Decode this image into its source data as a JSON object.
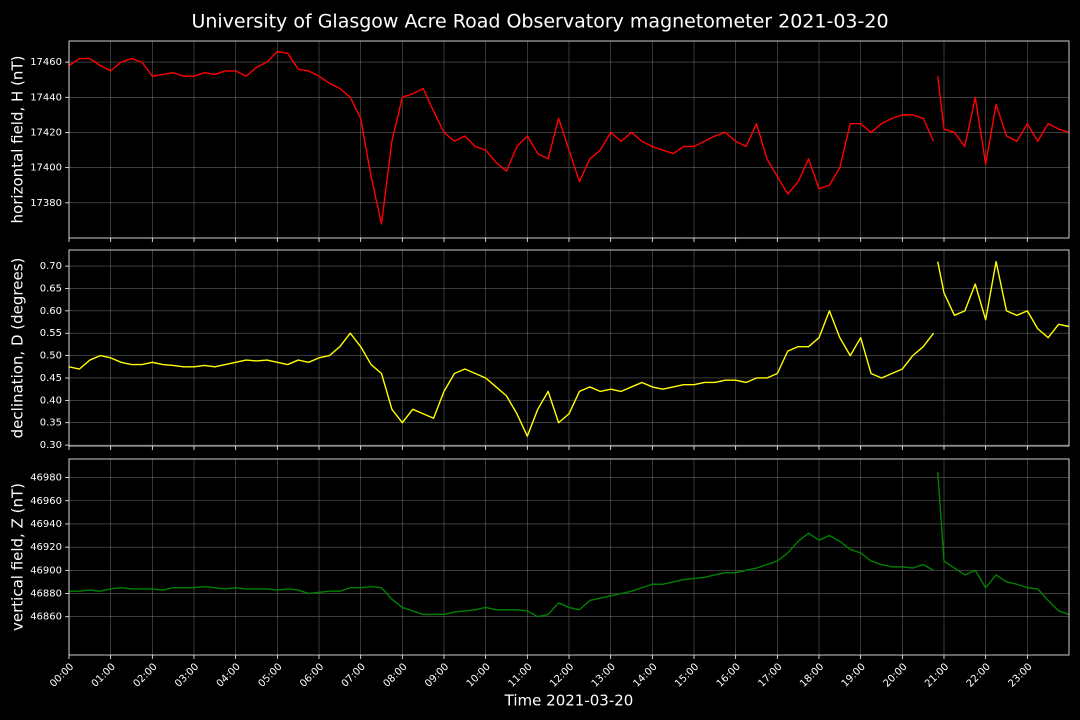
{
  "title": "University of Glasgow Acre Road Observatory magnetometer 2021-03-20",
  "xlabel": "Time 2021-03-20",
  "xlim": [
    0,
    24
  ],
  "xticks": [
    {
      "value": 0,
      "label": "00:00"
    },
    {
      "value": 1,
      "label": "01:00"
    },
    {
      "value": 2,
      "label": "02:00"
    },
    {
      "value": 3,
      "label": "03:00"
    },
    {
      "value": 4,
      "label": "04:00"
    },
    {
      "value": 5,
      "label": "05:00"
    },
    {
      "value": 6,
      "label": "06:00"
    },
    {
      "value": 7,
      "label": "07:00"
    },
    {
      "value": 8,
      "label": "08:00"
    },
    {
      "value": 9,
      "label": "09:00"
    },
    {
      "value": 10,
      "label": "10:00"
    },
    {
      "value": 11,
      "label": "11:00"
    },
    {
      "value": 12,
      "label": "12:00"
    },
    {
      "value": 13,
      "label": "13:00"
    },
    {
      "value": 14,
      "label": "14:00"
    },
    {
      "value": 15,
      "label": "15:00"
    },
    {
      "value": 16,
      "label": "16:00"
    },
    {
      "value": 17,
      "label": "17:00"
    },
    {
      "value": 18,
      "label": "18:00"
    },
    {
      "value": 19,
      "label": "19:00"
    },
    {
      "value": 20,
      "label": "20:00"
    },
    {
      "value": 21,
      "label": "21:00"
    },
    {
      "value": 22,
      "label": "22:00"
    },
    {
      "value": 23,
      "label": "23:00"
    }
  ],
  "chart_data": [
    {
      "type": "line",
      "ylabel": "horizontal field, H (nT)",
      "color": "#ff0000",
      "grid": true,
      "ylim": [
        17360,
        17472
      ],
      "yticks": [
        17380,
        17400,
        17420,
        17440,
        17460
      ],
      "x": [
        0,
        0.25,
        0.5,
        0.75,
        1,
        1.25,
        1.5,
        1.75,
        2,
        2.25,
        2.5,
        2.75,
        3,
        3.25,
        3.5,
        3.75,
        4,
        4.25,
        4.5,
        4.75,
        5,
        5.25,
        5.5,
        5.75,
        6,
        6.25,
        6.5,
        6.75,
        7,
        7.25,
        7.5,
        7.75,
        8,
        8.25,
        8.5,
        8.75,
        9,
        9.25,
        9.5,
        9.75,
        10,
        10.25,
        10.5,
        10.75,
        11,
        11.25,
        11.5,
        11.75,
        12,
        12.25,
        12.5,
        12.75,
        13,
        13.25,
        13.5,
        13.75,
        14,
        14.25,
        14.5,
        14.75,
        15,
        15.25,
        15.5,
        15.75,
        16,
        16.25,
        16.5,
        16.75,
        17,
        17.25,
        17.5,
        17.75,
        18,
        18.25,
        18.5,
        18.75,
        19,
        19.25,
        19.5,
        19.75,
        20,
        20.25,
        20.5,
        20.75,
        20.8,
        20.85,
        21,
        21.25,
        21.5,
        21.75,
        22,
        22.25,
        22.5,
        22.75,
        23,
        23.25,
        23.5,
        23.75,
        24
      ],
      "values": [
        17458,
        17462,
        17462,
        17458,
        17455,
        17460,
        17462,
        17460,
        17452,
        17453,
        17454,
        17452,
        17452,
        17454,
        17453,
        17455,
        17455,
        17452,
        17457,
        17460,
        17466,
        17465,
        17456,
        17455,
        17452,
        17448,
        17445,
        17440,
        17428,
        17395,
        17368,
        17415,
        17440,
        17442,
        17445,
        17432,
        17420,
        17415,
        17418,
        17412,
        17410,
        17403,
        17398,
        17412,
        17418,
        17408,
        17405,
        17428,
        17410,
        17392,
        17405,
        17410,
        17420,
        17415,
        17420,
        17415,
        17412,
        17410,
        17408,
        17412,
        17412,
        17415,
        17418,
        17420,
        17415,
        17412,
        17425,
        17405,
        17395,
        17385,
        17392,
        17405,
        17388,
        17390,
        17400,
        17425,
        17425,
        17420,
        17425,
        17428,
        17430,
        17430,
        17428,
        17415,
        null,
        17452,
        17422,
        17420,
        17412,
        17440,
        17402,
        17436,
        17418,
        17415,
        17425,
        17415,
        17425,
        17422,
        17420
      ]
    },
    {
      "type": "line",
      "ylabel": "declination, D (degrees)",
      "color": "#ffff00",
      "grid": true,
      "ylim": [
        0.298,
        0.736
      ],
      "yticks": [
        {
          "value": 0.3,
          "label": "0.30"
        },
        0.35,
        {
          "value": 0.4,
          "label": "0.40"
        },
        0.45,
        {
          "value": 0.5,
          "label": "0.50"
        },
        0.55,
        {
          "value": 0.6,
          "label": "0.60"
        },
        0.65,
        {
          "value": 0.7,
          "label": "0.70"
        }
      ],
      "x": [
        0,
        0.25,
        0.5,
        0.75,
        1,
        1.25,
        1.5,
        1.75,
        2,
        2.25,
        2.5,
        2.75,
        3,
        3.25,
        3.5,
        3.75,
        4,
        4.25,
        4.5,
        4.75,
        5,
        5.25,
        5.5,
        5.75,
        6,
        6.25,
        6.5,
        6.75,
        7,
        7.25,
        7.5,
        7.75,
        8,
        8.25,
        8.5,
        8.75,
        9,
        9.25,
        9.5,
        9.75,
        10,
        10.25,
        10.5,
        10.75,
        11,
        11.25,
        11.5,
        11.75,
        12,
        12.25,
        12.5,
        12.75,
        13,
        13.25,
        13.5,
        13.75,
        14,
        14.25,
        14.5,
        14.75,
        15,
        15.25,
        15.5,
        15.75,
        16,
        16.25,
        16.5,
        16.75,
        17,
        17.25,
        17.5,
        17.75,
        18,
        18.25,
        18.5,
        18.75,
        19,
        19.25,
        19.5,
        19.75,
        20,
        20.25,
        20.5,
        20.75,
        20.8,
        20.85,
        21,
        21.25,
        21.5,
        21.75,
        22,
        22.25,
        22.5,
        22.75,
        23,
        23.25,
        23.5,
        23.75,
        24
      ],
      "values": [
        0.475,
        0.47,
        0.49,
        0.5,
        0.495,
        0.485,
        0.48,
        0.48,
        0.485,
        0.48,
        0.478,
        0.475,
        0.475,
        0.478,
        0.475,
        0.48,
        0.485,
        0.49,
        0.488,
        0.49,
        0.485,
        0.48,
        0.49,
        0.485,
        0.495,
        0.5,
        0.52,
        0.55,
        0.52,
        0.48,
        0.46,
        0.38,
        0.35,
        0.38,
        0.37,
        0.36,
        0.42,
        0.46,
        0.47,
        0.46,
        0.45,
        0.43,
        0.41,
        0.37,
        0.32,
        0.38,
        0.42,
        0.35,
        0.37,
        0.42,
        0.43,
        0.42,
        0.425,
        0.42,
        0.43,
        0.44,
        0.43,
        0.425,
        0.43,
        0.435,
        0.435,
        0.44,
        0.44,
        0.445,
        0.445,
        0.44,
        0.45,
        0.45,
        0.46,
        0.51,
        0.52,
        0.52,
        0.54,
        0.6,
        0.54,
        0.5,
        0.54,
        0.46,
        0.45,
        0.46,
        0.47,
        0.5,
        0.52,
        0.55,
        null,
        0.71,
        0.64,
        0.59,
        0.6,
        0.66,
        0.58,
        0.71,
        0.6,
        0.59,
        0.6,
        0.56,
        0.54,
        0.57,
        0.565
      ]
    },
    {
      "type": "line",
      "ylabel": "vertical field, Z (nT)",
      "color": "#008000",
      "grid": true,
      "ylim": [
        46827,
        46996
      ],
      "yticks": [
        46860,
        46880,
        46900,
        46920,
        46940,
        46960,
        46980
      ],
      "x": [
        0,
        0.25,
        0.5,
        0.75,
        1,
        1.25,
        1.5,
        1.75,
        2,
        2.25,
        2.5,
        2.75,
        3,
        3.25,
        3.5,
        3.75,
        4,
        4.25,
        4.5,
        4.75,
        5,
        5.25,
        5.5,
        5.75,
        6,
        6.25,
        6.5,
        6.75,
        7,
        7.25,
        7.5,
        7.75,
        8,
        8.25,
        8.5,
        8.75,
        9,
        9.25,
        9.5,
        9.75,
        10,
        10.25,
        10.5,
        10.75,
        11,
        11.25,
        11.5,
        11.75,
        12,
        12.25,
        12.5,
        12.75,
        13,
        13.25,
        13.5,
        13.75,
        14,
        14.25,
        14.5,
        14.75,
        15,
        15.25,
        15.5,
        15.75,
        16,
        16.25,
        16.5,
        16.75,
        17,
        17.25,
        17.5,
        17.75,
        18,
        18.25,
        18.5,
        18.75,
        19,
        19.25,
        19.5,
        19.75,
        20,
        20.25,
        20.5,
        20.75,
        20.8,
        20.85,
        21,
        21.25,
        21.5,
        21.75,
        22,
        22.25,
        22.5,
        22.75,
        23,
        23.25,
        23.5,
        23.75,
        24
      ],
      "values": [
        46882,
        46882,
        46883,
        46882,
        46884,
        46885,
        46884,
        46884,
        46884,
        46883,
        46885,
        46885,
        46885,
        46886,
        46885,
        46884,
        46885,
        46884,
        46884,
        46884,
        46883,
        46884,
        46883,
        46880,
        46881,
        46882,
        46882,
        46885,
        46885,
        46886,
        46885,
        46875,
        46868,
        46865,
        46862,
        46862,
        46862,
        46864,
        46865,
        46866,
        46868,
        46866,
        46866,
        46866,
        46865,
        46860,
        46862,
        46872,
        46868,
        46866,
        46874,
        46876,
        46878,
        46880,
        46882,
        46885,
        46888,
        46888,
        46890,
        46892,
        46893,
        46894,
        46896,
        46898,
        46898,
        46900,
        46902,
        46905,
        46908,
        46915,
        46925,
        46932,
        46926,
        46930,
        46925,
        46918,
        46915,
        46908,
        46905,
        46903,
        46903,
        46902,
        46905,
        46900,
        null,
        46985,
        46908,
        46902,
        46896,
        46900,
        46885,
        46896,
        46890,
        46888,
        46885,
        46884,
        46874,
        46865,
        46862
      ]
    }
  ]
}
